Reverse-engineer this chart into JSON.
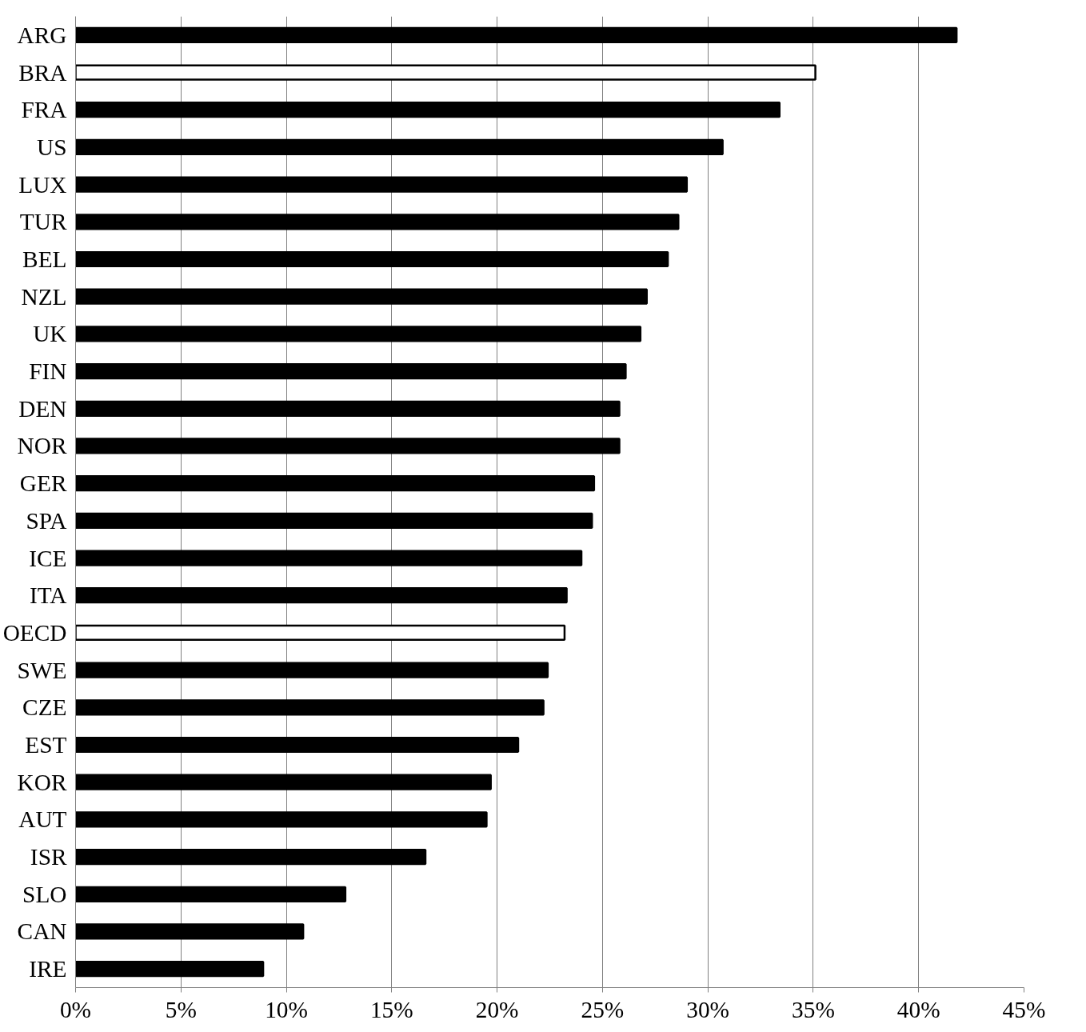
{
  "chart_data": {
    "type": "bar",
    "orientation": "horizontal",
    "categories": [
      "ARG",
      "BRA",
      "FRA",
      "US",
      "LUX",
      "TUR",
      "BEL",
      "NZL",
      "UK",
      "FIN",
      "DEN",
      "NOR",
      "GER",
      "SPA",
      "ICE",
      "ITA",
      "OECD",
      "SWE",
      "CZE",
      "EST",
      "KOR",
      "AUT",
      "ISR",
      "SLO",
      "CAN",
      "IRE"
    ],
    "values": [
      41.8,
      35.1,
      33.4,
      30.7,
      29.0,
      28.6,
      28.1,
      27.1,
      26.8,
      26.1,
      25.8,
      25.8,
      24.6,
      24.5,
      24.0,
      23.3,
      23.2,
      22.4,
      22.2,
      21.0,
      19.7,
      19.5,
      16.6,
      12.8,
      10.8,
      8.9
    ],
    "colors": [
      "#000000",
      "#ffffff",
      "#000000",
      "#000000",
      "#000000",
      "#000000",
      "#000000",
      "#000000",
      "#000000",
      "#000000",
      "#000000",
      "#000000",
      "#000000",
      "#000000",
      "#000000",
      "#000000",
      "#ffffff",
      "#000000",
      "#000000",
      "#000000",
      "#000000",
      "#000000",
      "#000000",
      "#000000",
      "#000000",
      "#000000"
    ],
    "xlim": [
      0,
      45
    ],
    "xticks": [
      {
        "value": 0,
        "label": "0%"
      },
      {
        "value": 5,
        "label": "5%"
      },
      {
        "value": 10,
        "label": "10%"
      },
      {
        "value": 15,
        "label": "15%"
      },
      {
        "value": 20,
        "label": "20%"
      },
      {
        "value": 25,
        "label": "25%"
      },
      {
        "value": 30,
        "label": "30%"
      },
      {
        "value": 35,
        "label": "35%"
      },
      {
        "value": 40,
        "label": "40%"
      },
      {
        "value": 45,
        "label": "45%"
      }
    ],
    "grid": "x"
  }
}
